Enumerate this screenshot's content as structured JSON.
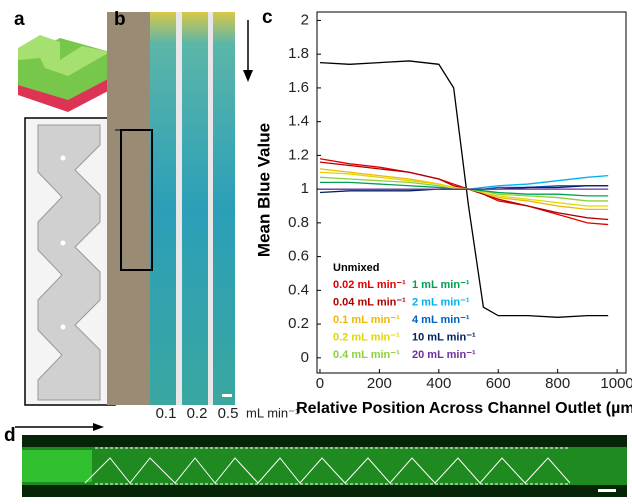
{
  "panel_labels": [
    "a",
    "b",
    "c",
    "d"
  ],
  "flow_rates": [
    "0.1",
    "0.2",
    "0.5"
  ],
  "flow_unit": "mL min⁻¹",
  "chart_data": {
    "type": "line",
    "x_label": "Relative Position Across Channel Outlet (µm)",
    "y_label": "Mean Blue Value",
    "x": [
      0,
      100,
      200,
      300,
      400,
      450,
      500,
      550,
      600,
      700,
      800,
      900,
      970
    ],
    "series": [
      {
        "name": "Unmixed",
        "color": "#000000",
        "values": [
          1.75,
          1.74,
          1.75,
          1.76,
          1.74,
          1.6,
          0.9,
          0.3,
          0.25,
          0.25,
          0.24,
          0.25,
          0.25
        ]
      },
      {
        "name": "0.02 mL min⁻¹",
        "color": "#e00000",
        "values": [
          1.18,
          1.15,
          1.13,
          1.1,
          1.06,
          1.03,
          1.0,
          0.97,
          0.93,
          0.9,
          0.85,
          0.8,
          0.79
        ]
      },
      {
        "name": "0.04 mL min⁻¹",
        "color": "#b00000",
        "values": [
          1.16,
          1.14,
          1.12,
          1.1,
          1.06,
          1.02,
          1.0,
          0.97,
          0.94,
          0.9,
          0.86,
          0.83,
          0.82
        ]
      },
      {
        "name": "0.1 mL min⁻¹",
        "color": "#f0b800",
        "values": [
          1.12,
          1.1,
          1.08,
          1.06,
          1.03,
          1.01,
          1.0,
          0.98,
          0.95,
          0.93,
          0.9,
          0.88,
          0.88
        ]
      },
      {
        "name": "0.2 mL min⁻¹",
        "color": "#e0d800",
        "values": [
          1.1,
          1.09,
          1.07,
          1.05,
          1.03,
          1.01,
          1.0,
          0.98,
          0.96,
          0.94,
          0.92,
          0.9,
          0.9
        ]
      },
      {
        "name": "0.4 mL min⁻¹",
        "color": "#8fcf3c",
        "values": [
          1.07,
          1.06,
          1.05,
          1.04,
          1.02,
          1.0,
          1.0,
          0.99,
          0.97,
          0.96,
          0.95,
          0.93,
          0.93
        ]
      },
      {
        "name": "1 mL min⁻¹",
        "color": "#00a050",
        "values": [
          1.04,
          1.04,
          1.03,
          1.02,
          1.01,
          1.0,
          1.0,
          0.99,
          0.98,
          0.97,
          0.97,
          0.96,
          0.96
        ]
      },
      {
        "name": "2 mL min⁻¹",
        "color": "#00b0f0",
        "values": [
          1.0,
          1.0,
          1.0,
          1.0,
          1.0,
          1.0,
          1.0,
          1.01,
          1.02,
          1.03,
          1.05,
          1.07,
          1.08
        ]
      },
      {
        "name": "4 mL min⁻¹",
        "color": "#0060c0",
        "values": [
          1.0,
          1.0,
          1.0,
          1.0,
          1.0,
          1.0,
          1.0,
          1.0,
          1.01,
          1.01,
          1.02,
          1.02,
          1.02
        ]
      },
      {
        "name": "10 mL min⁻¹",
        "color": "#002060",
        "values": [
          0.98,
          0.99,
          0.99,
          0.99,
          1.0,
          1.0,
          1.0,
          1.0,
          1.0,
          1.01,
          1.01,
          1.02,
          1.02
        ]
      },
      {
        "name": "20 mL min⁻¹",
        "color": "#7030a0",
        "values": [
          1.0,
          1.0,
          1.0,
          1.0,
          1.0,
          1.0,
          1.0,
          1.0,
          1.0,
          1.0,
          1.0,
          1.0,
          1.0
        ]
      }
    ],
    "xlim": [
      -10,
      1030
    ],
    "xticks": [
      0,
      200,
      400,
      600,
      800,
      1000
    ],
    "ylim": [
      -0.09,
      2.05
    ],
    "yticks": [
      0,
      0.2,
      0.4,
      0.6,
      0.8,
      1,
      1.2,
      1.4,
      1.6,
      1.8,
      2
    ]
  }
}
